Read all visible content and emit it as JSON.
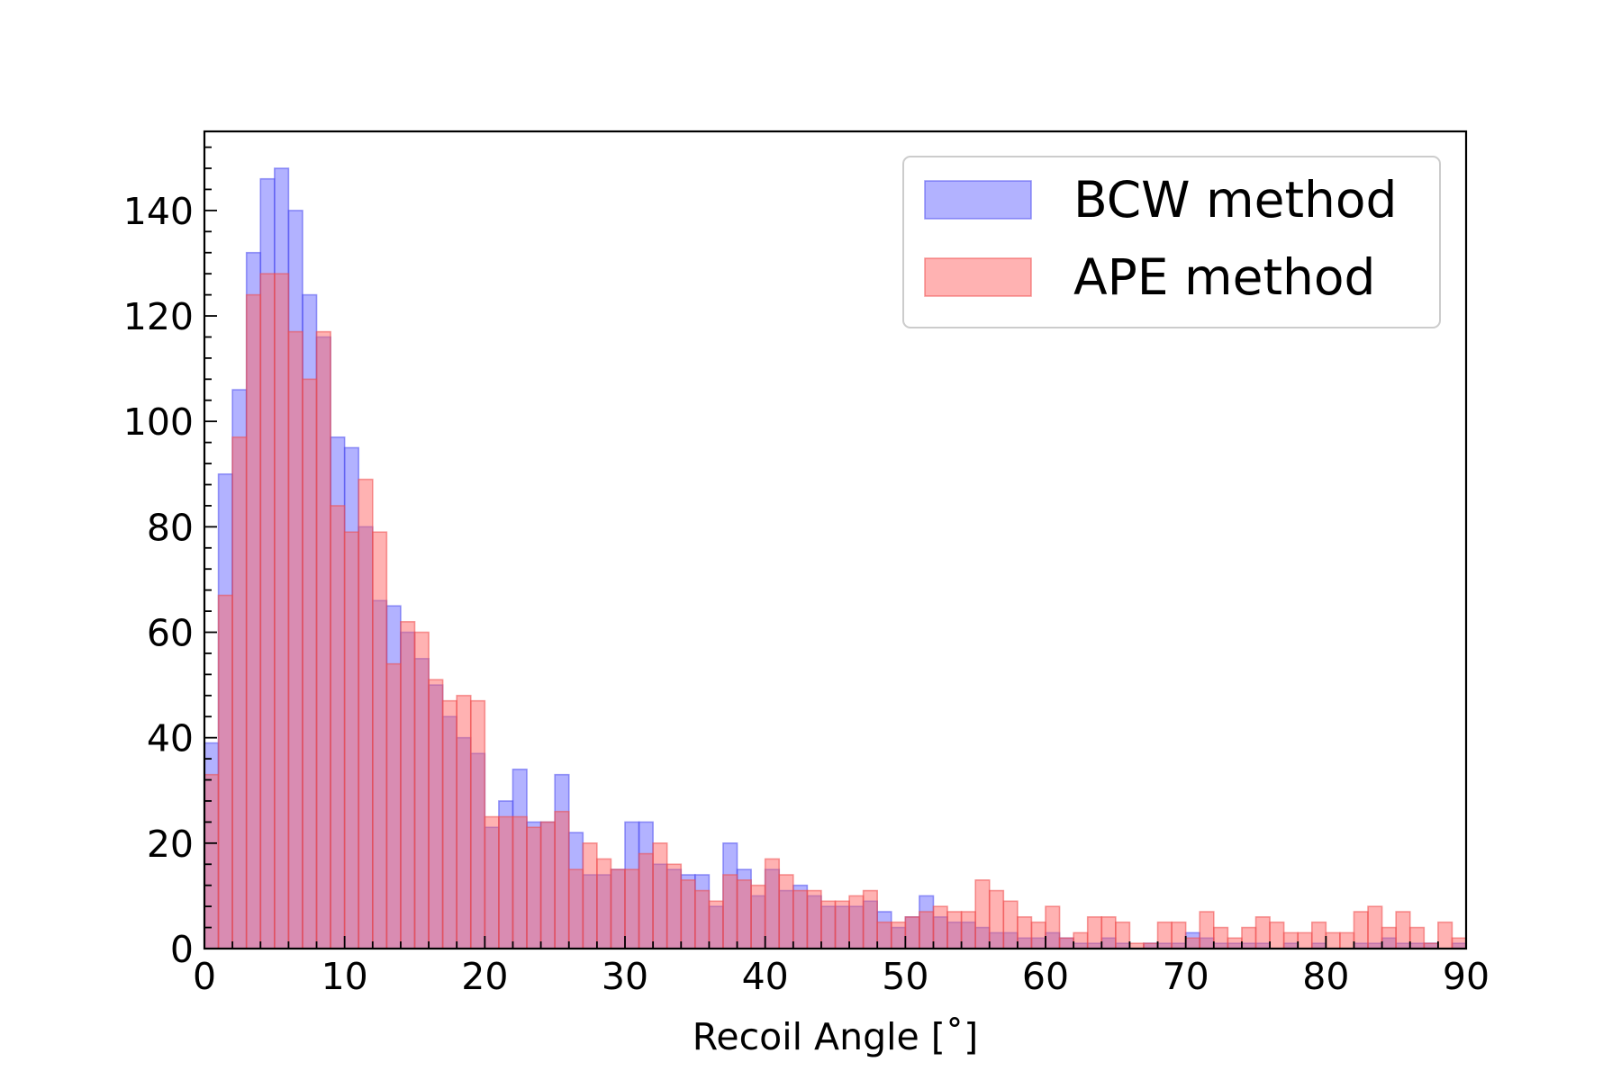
{
  "chart_data": {
    "type": "bar",
    "subtype": "overlapping-histogram",
    "bin_width": 1,
    "xlim": [
      0,
      90
    ],
    "ylim": [
      0,
      155
    ],
    "xticks": [
      0,
      10,
      20,
      30,
      40,
      50,
      60,
      70,
      80,
      90
    ],
    "yticks": [
      0,
      20,
      40,
      60,
      80,
      100,
      120,
      140
    ],
    "xlabel": "Recoil Angle [˚]",
    "ylabel": "",
    "title": "",
    "grid": false,
    "legend_position": "top-right",
    "series": [
      {
        "name": "BCW method",
        "fill": "#6666ff",
        "edge": "#4d4dee",
        "bin_start": 0,
        "values": [
          39,
          90,
          106,
          132,
          146,
          148,
          140,
          124,
          116,
          97,
          95,
          80,
          66,
          65,
          60,
          55,
          50,
          44,
          40,
          37,
          23,
          28,
          34,
          24,
          24,
          33,
          22,
          14,
          14,
          15,
          24,
          24,
          16,
          15,
          14,
          14,
          8,
          20,
          15,
          10,
          15,
          11,
          12,
          10,
          8,
          8,
          8,
          9,
          7,
          4,
          6,
          10,
          6,
          5,
          5,
          4,
          3,
          3,
          2,
          2,
          3,
          2,
          1,
          1,
          2,
          1,
          0,
          1,
          1,
          1,
          3,
          2,
          1,
          1,
          1,
          1,
          0,
          1,
          0,
          1,
          0,
          0,
          1,
          1,
          2,
          1,
          1,
          1,
          0,
          1
        ]
      },
      {
        "name": "APE method",
        "fill": "#ff6666",
        "edge": "#ee4d4d",
        "bin_start": 0,
        "values": [
          33,
          67,
          97,
          124,
          128,
          128,
          117,
          108,
          117,
          84,
          79,
          89,
          79,
          54,
          62,
          60,
          51,
          47,
          48,
          47,
          25,
          25,
          25,
          23,
          24,
          26,
          15,
          20,
          17,
          15,
          15,
          18,
          20,
          16,
          13,
          11,
          9,
          14,
          13,
          12,
          17,
          14,
          11,
          11,
          9,
          9,
          10,
          11,
          5,
          5,
          6,
          7,
          8,
          7,
          7,
          13,
          11,
          9,
          6,
          5,
          8,
          2,
          3,
          6,
          6,
          5,
          1,
          1,
          5,
          5,
          2,
          7,
          4,
          2,
          4,
          6,
          5,
          3,
          3,
          5,
          3,
          3,
          7,
          8,
          4,
          7,
          4,
          1,
          5,
          2
        ]
      }
    ]
  }
}
